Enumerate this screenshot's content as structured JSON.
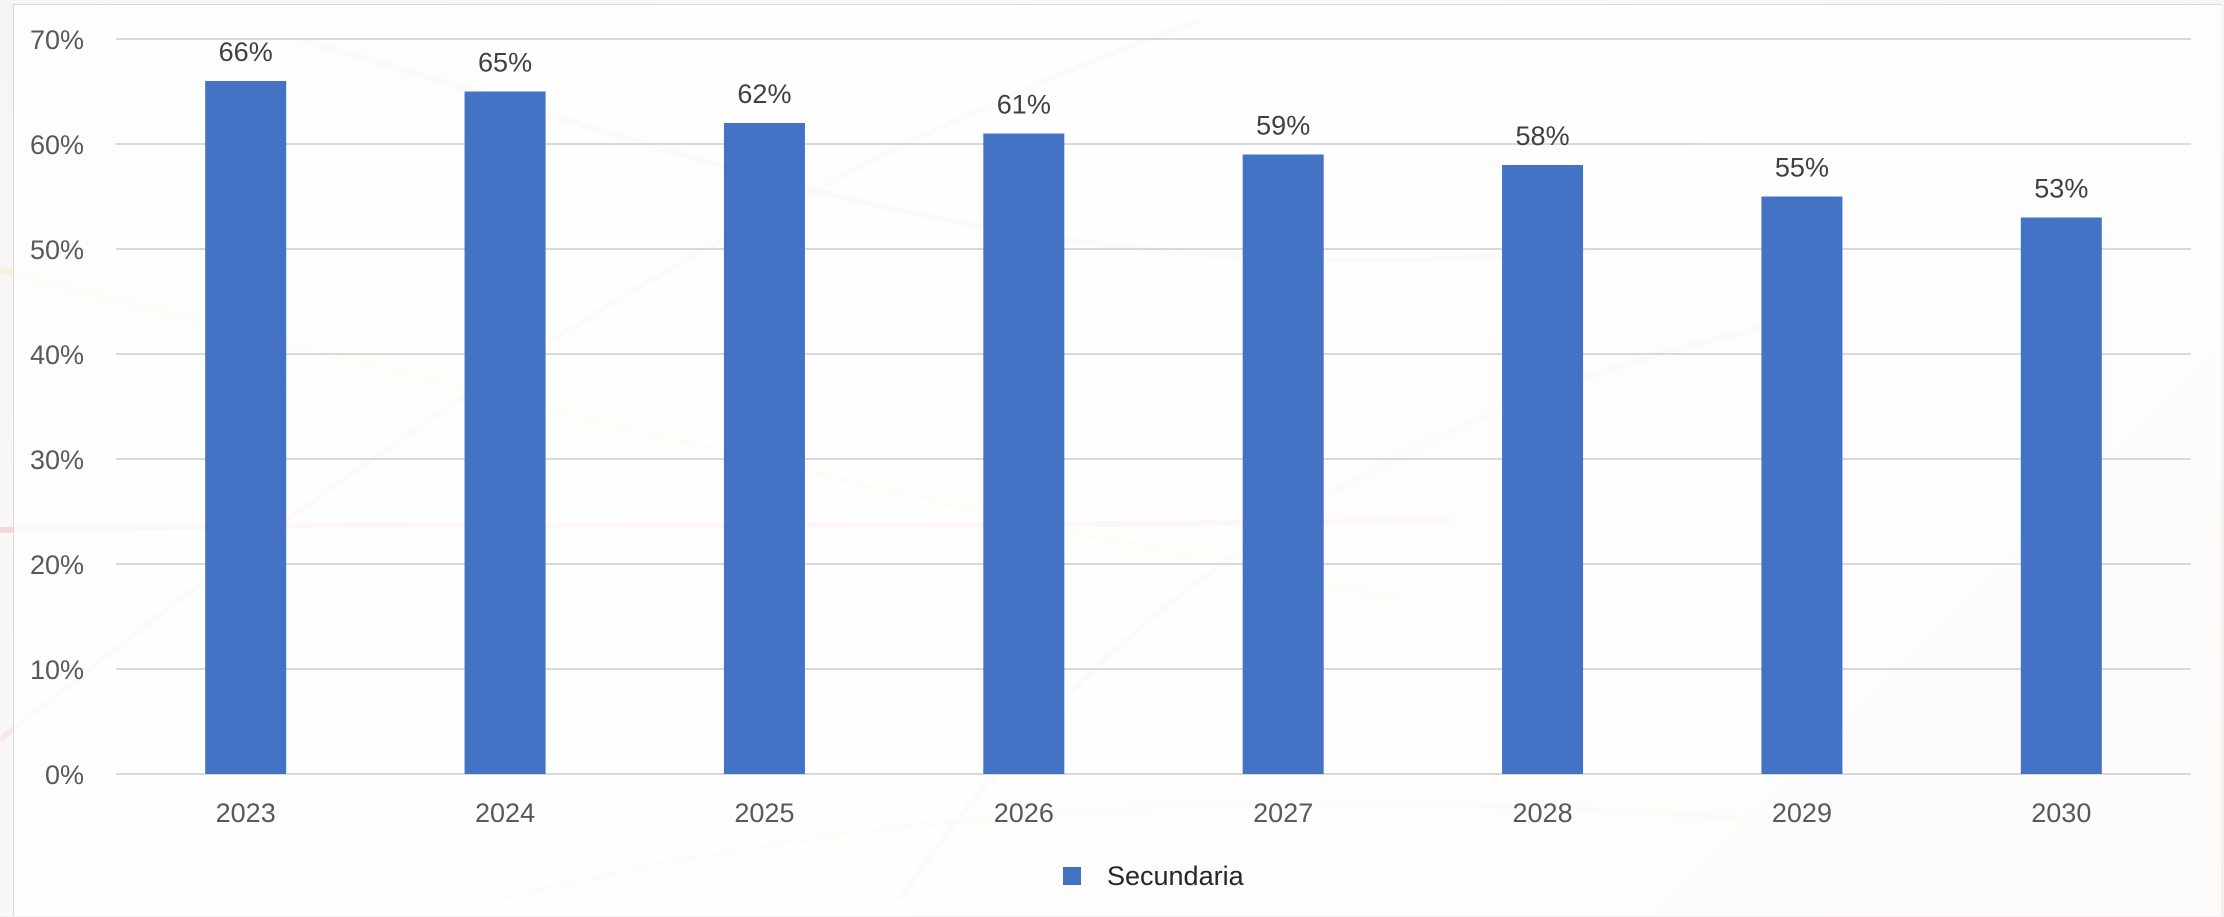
{
  "chart_data": {
    "type": "bar",
    "title": "",
    "xlabel": "",
    "ylabel": "",
    "categories": [
      "2023",
      "2024",
      "2025",
      "2026",
      "2027",
      "2028",
      "2029",
      "2030"
    ],
    "series": [
      {
        "name": "Secundaria",
        "values": [
          66,
          65,
          62,
          61,
          59,
          58,
          55,
          53
        ],
        "labels": [
          "66%",
          "65%",
          "62%",
          "61%",
          "59%",
          "58%",
          "55%",
          "53%"
        ],
        "color": "#4472C4"
      }
    ],
    "ylim": [
      0,
      70
    ],
    "yticks": [
      0,
      10,
      20,
      30,
      40,
      50,
      60,
      70
    ],
    "ytick_labels": [
      "0%",
      "10%",
      "20%",
      "30%",
      "40%",
      "50%",
      "60%",
      "70%"
    ],
    "grid": true,
    "legend": "bottom-center",
    "gridline_color": "#d9d9d9"
  }
}
